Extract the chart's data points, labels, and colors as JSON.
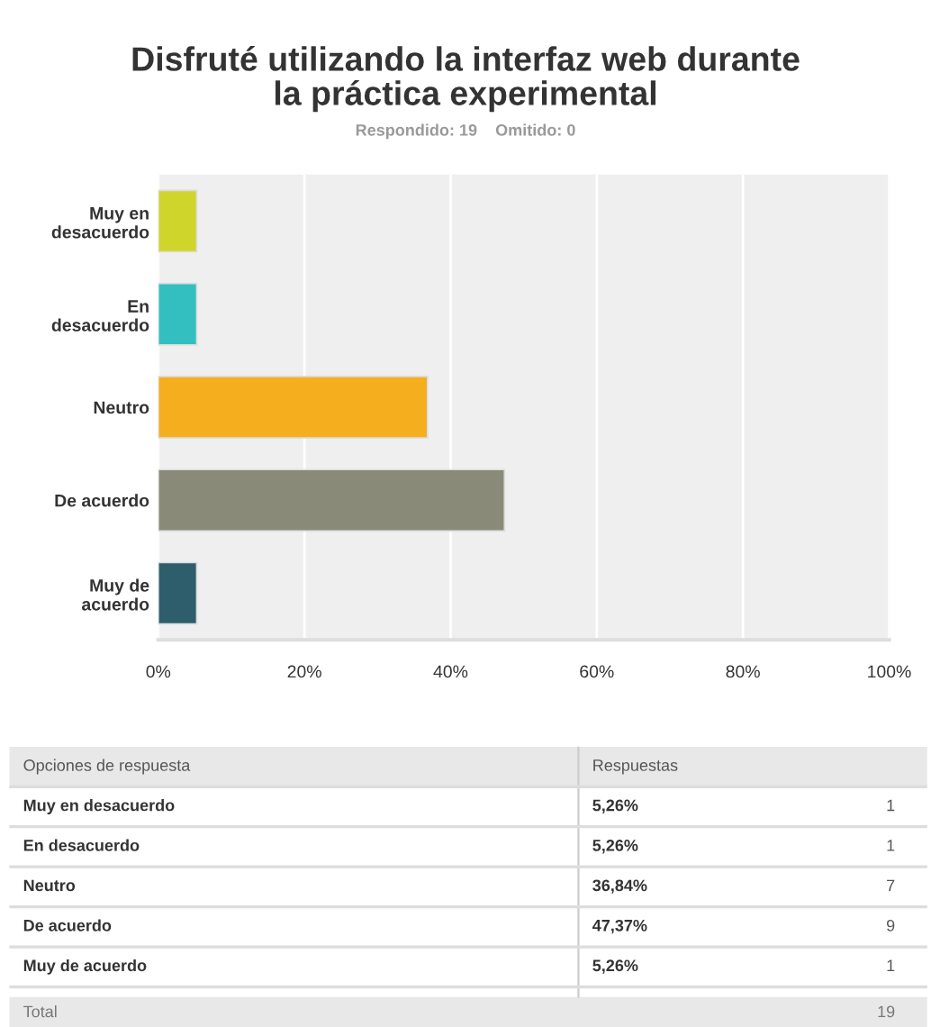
{
  "chart_data": {
    "type": "bar",
    "orientation": "horizontal",
    "title": "Disfruté utilizando la interfaz web durante\nla práctica experimental",
    "subtitle": "Respondido: 19    Omitido: 0",
    "categories": [
      "Muy en\ndesacuerdo",
      "En\ndesacuerdo",
      "Neutro",
      "De acuerdo",
      "Muy de\nacuerdo"
    ],
    "values": [
      5.26,
      5.26,
      36.84,
      47.37,
      5.26
    ],
    "colors": [
      "#cfd52a",
      "#33bfbf",
      "#f5ae1e",
      "#898a78",
      "#2e5e6b"
    ],
    "xlim": [
      0,
      100
    ],
    "xticks": [
      {
        "value": 0,
        "label": "0%"
      },
      {
        "value": 20,
        "label": "20%"
      },
      {
        "value": 40,
        "label": "40%"
      },
      {
        "value": 60,
        "label": "60%"
      },
      {
        "value": 80,
        "label": "80%"
      },
      {
        "value": 100,
        "label": "100%"
      }
    ],
    "grid": "x",
    "annotations": [
      "Opciones de respuesta",
      "Respuestas",
      "Muy en desacuerdo",
      "En desacuerdo",
      "Neutro",
      "De acuerdo",
      "Muy de acuerdo",
      "5,26%",
      "5,26%",
      "36,84%",
      "47,37%",
      "5,26%",
      "1",
      "1",
      "7",
      "9",
      "1",
      "Total",
      "19"
    ]
  }
}
